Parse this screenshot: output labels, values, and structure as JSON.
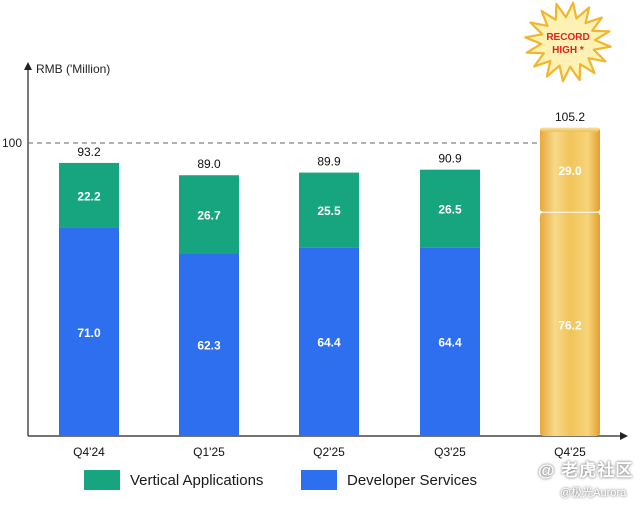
{
  "chart_data": {
    "type": "bar",
    "stacked": true,
    "ylabel": "RMB ('Million)",
    "reference_line": 100,
    "reference_label": "100",
    "ylim": [
      0,
      125
    ],
    "categories": [
      "Q4'24",
      "Q1'25",
      "Q2'25",
      "Q3'25",
      "Q4'25"
    ],
    "series": [
      {
        "name": "Developer Services",
        "color": "#2e6ff0",
        "values": [
          71.0,
          62.3,
          64.4,
          64.4,
          76.2
        ],
        "labels": [
          "71.0",
          "62.3",
          "64.4",
          "64.4",
          "76.2"
        ]
      },
      {
        "name": "Vertical Applications",
        "color": "#17a57f",
        "values": [
          22.2,
          26.7,
          25.5,
          26.5,
          29.0
        ],
        "labels": [
          "22.2",
          "26.7",
          "25.5",
          "26.5",
          "29.0"
        ]
      }
    ],
    "totals": [
      "93.2",
      "89.0",
      "89.9",
      "90.9",
      "105.2"
    ],
    "highlight_color": "#f2c14e",
    "callout": {
      "line1": "RECORD",
      "line2": "HIGH *"
    }
  },
  "legend": {
    "vertical": "Vertical Applications",
    "developer": "Developer Services"
  },
  "watermark": {
    "line1": "@ 老虎社区",
    "line2": "@极光Aurora"
  }
}
